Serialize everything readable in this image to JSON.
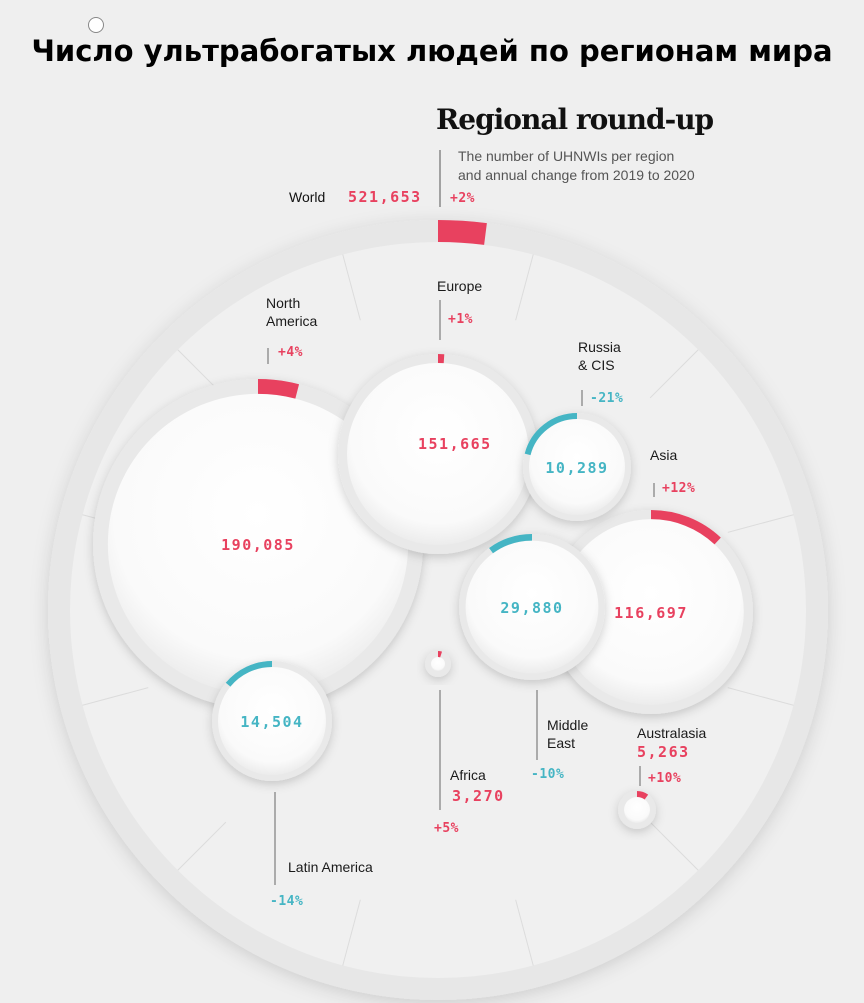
{
  "page_title": "Число ультрабогатых людей по регионам мира",
  "colors": {
    "increase": "#e8415f",
    "decrease": "#45b5c4",
    "track": "#e6e6e6",
    "bubble": "#ffffff",
    "text": "#1a1a1a",
    "subtitle": "#555555"
  },
  "chart_data": {
    "type": "bubble",
    "title": "Regional round-up",
    "subtitle": [
      "The number of UHNWIs per region",
      "and annual change from 2019 to 2020"
    ],
    "world": {
      "name": "World",
      "value": 521653,
      "value_label": "521,653",
      "change": 2,
      "change_label": "+2%"
    },
    "regions": [
      {
        "name": "North America",
        "name_lines": [
          "North",
          "America"
        ],
        "value": 190085,
        "value_label": "190,085",
        "change": 4,
        "change_label": "+4%"
      },
      {
        "name": "Europe",
        "name_lines": [
          "Europe"
        ],
        "value": 151665,
        "value_label": "151,665",
        "change": 1,
        "change_label": "+1%"
      },
      {
        "name": "Russia & CIS",
        "name_lines": [
          "Russia",
          "& CIS"
        ],
        "value": 10289,
        "value_label": "10,289",
        "change": -21,
        "change_label": "-21%"
      },
      {
        "name": "Asia",
        "name_lines": [
          "Asia"
        ],
        "value": 116697,
        "value_label": "116,697",
        "change": 12,
        "change_label": "+12%"
      },
      {
        "name": "Middle East",
        "name_lines": [
          "Middle",
          "East"
        ],
        "value": 29880,
        "value_label": "29,880",
        "change": -10,
        "change_label": "-10%"
      },
      {
        "name": "Latin America",
        "name_lines": [
          "Latin America"
        ],
        "value": 14504,
        "value_label": "14,504",
        "change": -14,
        "change_label": "-14%"
      },
      {
        "name": "Africa",
        "name_lines": [
          "Africa"
        ],
        "value": 3270,
        "value_label": "3,270",
        "change": 5,
        "change_label": "+5%"
      },
      {
        "name": "Australasia",
        "name_lines": [
          "Australasia"
        ],
        "value": 5263,
        "value_label": "5,263",
        "change": 10,
        "change_label": "+10%"
      }
    ]
  }
}
